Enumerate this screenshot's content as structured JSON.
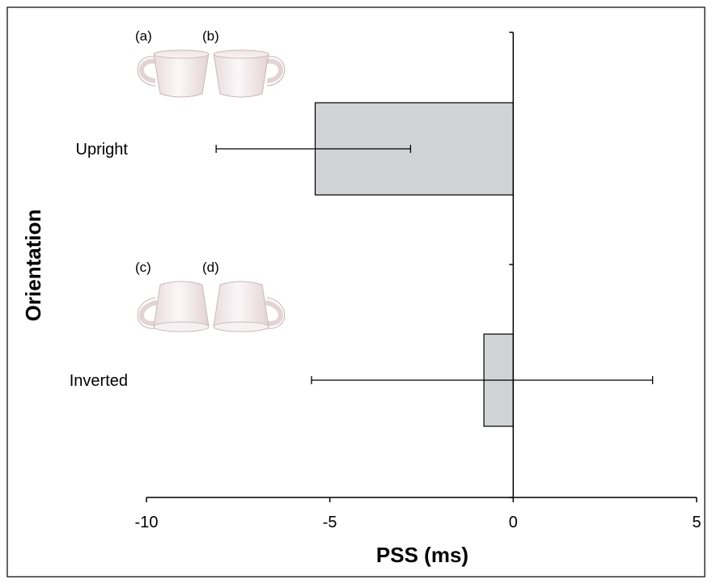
{
  "chart_data": {
    "type": "bar",
    "orientation": "horizontal",
    "categories": [
      "Upright",
      "Inverted"
    ],
    "values": [
      -5.4,
      -0.8
    ],
    "error_bars": [
      {
        "low": -8.1,
        "high": -2.8
      },
      {
        "low": -5.5,
        "high": 3.8
      }
    ],
    "xlabel": "PSS (ms)",
    "ylabel": "Orientation",
    "xlim": [
      -10,
      5
    ],
    "xticks": [
      "-10",
      "-5",
      "0",
      "5"
    ],
    "grid": false,
    "bar_color": "#d1d3d4",
    "panel_labels": [
      "(a)",
      "(b)",
      "(c)",
      "(d)"
    ],
    "inset_images": [
      {
        "category": "Upright",
        "icons": [
          "upright-cup-handle-left-icon",
          "upright-cup-handle-right-icon"
        ]
      },
      {
        "category": "Inverted",
        "icons": [
          "inverted-cup-handle-left-icon",
          "inverted-cup-handle-right-icon"
        ]
      }
    ]
  }
}
